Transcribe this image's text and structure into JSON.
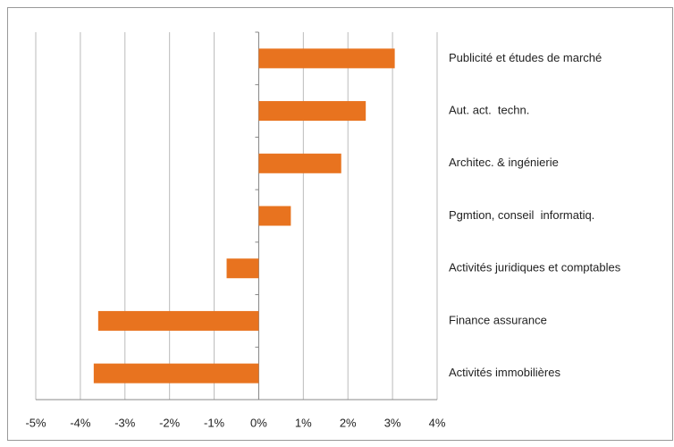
{
  "chart_data": {
    "type": "bar",
    "orientation": "horizontal",
    "categories": [
      "Publicité et études de marché",
      "Aut. act.  techn.",
      "Architec. & ingénierie",
      "Pgmtion, conseil  informatiq.",
      "Activités juridiques et comptables",
      "Finance assurance",
      "Activités immobilières"
    ],
    "values": [
      3.05,
      2.4,
      1.85,
      0.72,
      -0.72,
      -3.6,
      -3.7
    ],
    "color": "#e8731f",
    "xlim": [
      -5,
      4
    ],
    "xticks": [
      {
        "value": -5,
        "label": "-5%"
      },
      {
        "value": -4,
        "label": "-4%"
      },
      {
        "value": -3,
        "label": "-3%"
      },
      {
        "value": -2,
        "label": "-2%"
      },
      {
        "value": -1,
        "label": "-1%"
      },
      {
        "value": 0,
        "label": "0%"
      },
      {
        "value": 1,
        "label": "1%"
      },
      {
        "value": 2,
        "label": "2%"
      },
      {
        "value": 3,
        "label": "3%"
      },
      {
        "value": 4,
        "label": "4%"
      }
    ],
    "grid": true
  }
}
